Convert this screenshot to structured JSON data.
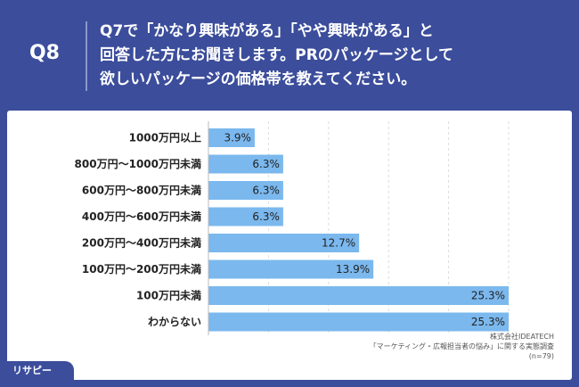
{
  "header": {
    "badge": "Q8",
    "question_lines": [
      "Q7で「かなり興味がある」「やや興味がある」と",
      "回答した方にお聞きします。PRのパッケージとして",
      "欲しいパッケージの価格帯を教えてください。"
    ]
  },
  "source": {
    "line1": "株式会社IDEATECH",
    "line2": "「マーケティング・広報担当者の悩み」に関する実態調査",
    "line3": "(n=79)"
  },
  "logo": {
    "text": "リサピー"
  },
  "colors": {
    "background": "#3b4d9b",
    "bar": "#7bb8ee",
    "panel": "#ffffff"
  },
  "chart_data": {
    "type": "bar",
    "orientation": "horizontal",
    "categories": [
      "1000万円以上",
      "800万円〜1000万円未満",
      "600万円〜800万円未満",
      "400万円〜600万円未満",
      "200万円〜400万円未満",
      "100万円〜200万円未満",
      "100万円未満",
      "わからない"
    ],
    "values": [
      3.9,
      6.3,
      6.3,
      6.3,
      12.7,
      13.9,
      25.3,
      25.3
    ],
    "value_labels": [
      "3.9%",
      "6.3%",
      "6.3%",
      "6.3%",
      "12.7%",
      "13.9%",
      "25.3%",
      "25.3%"
    ],
    "xlim": [
      0,
      25.3
    ],
    "grid": true
  }
}
